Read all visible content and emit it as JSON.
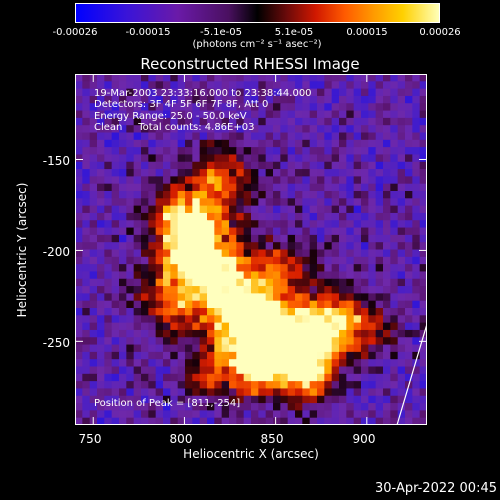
{
  "colorbar": {
    "ticks": [
      "-0.00026",
      "-0.00015",
      "-5.1e-05",
      "5.1e-05",
      "0.00015",
      "0.00026"
    ],
    "unit": "(photons cm⁻² s⁻¹ asec⁻²)",
    "colors": [
      "#0000ff",
      "#6a1aa8",
      "#000000",
      "#d01800",
      "#ff9a00",
      "#ffffb8"
    ]
  },
  "chart_data": {
    "type": "heatmap",
    "title": "Reconstructed RHESSI Image",
    "xlabel": "Heliocentric X (arcsec)",
    "ylabel": "Heliocentric Y (arcsec)",
    "xlim": [
      740,
      933
    ],
    "ylim": [
      -296,
      -103
    ],
    "x_ticks": [
      "750",
      "800",
      "850",
      "900"
    ],
    "y_ticks": [
      "-150",
      "-200",
      "-250"
    ],
    "peak": {
      "x": 811,
      "y": -254
    },
    "annotations": [
      "19-Mar-2003 23:33:16.000 to 23:38:44.000",
      "Detectors: 3F 4F 5F 6F 7F 8F, Att 0",
      "Energy Range: 25.0 - 50.0 keV",
      "Clean     Total counts: 4.86E+03"
    ],
    "peak_label": "Position of Peak = [811,-254]"
  },
  "footer": {
    "timestamp": "30-Apr-2022 00:45"
  }
}
